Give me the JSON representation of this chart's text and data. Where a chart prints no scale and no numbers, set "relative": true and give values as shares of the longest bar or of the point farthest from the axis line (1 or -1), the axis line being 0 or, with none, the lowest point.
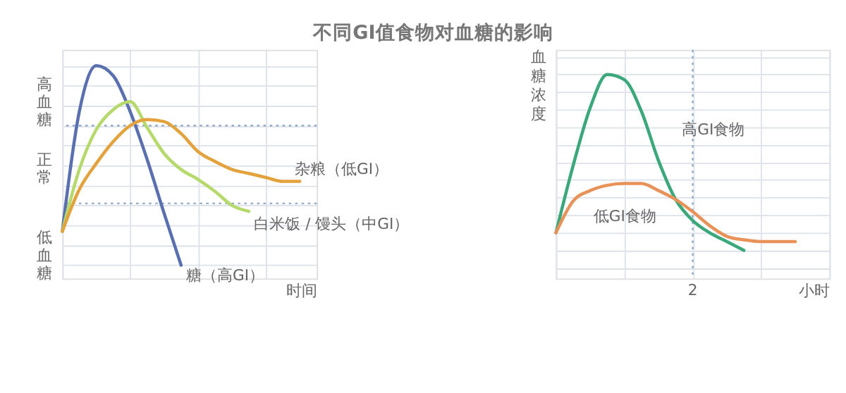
{
  "chart_data": [
    {
      "type": "line",
      "title": "不同GI值食物对血糖的影响",
      "xlabel": "时间",
      "relative": true,
      "grid": true,
      "legend": false,
      "tick_labels": false,
      "categories": [
        null,
        null,
        null,
        null,
        null,
        null,
        null,
        null,
        null,
        null,
        null,
        null,
        null,
        null,
        null,
        null
      ],
      "series": [
        {
          "name": "糖（高GI）",
          "color": "#5a6fb0",
          "values": [
            0.17,
            0.77,
            1.0,
            0.95,
            0.77,
            0.53,
            0.26,
            0,
            null,
            null,
            null,
            null,
            null,
            null,
            null,
            null
          ]
        },
        {
          "name": "白米饭 / 馒头（中GI）",
          "color": "#b5d96a",
          "values": [
            0.17,
            0.48,
            0.68,
            0.78,
            0.82,
            0.69,
            0.56,
            0.48,
            0.43,
            0.37,
            0.3,
            0.27,
            null,
            null,
            null,
            null
          ]
        },
        {
          "name": "杂粮（低GI）",
          "color": "#e3a23c",
          "values": [
            0.17,
            0.38,
            0.51,
            0.62,
            0.7,
            0.73,
            0.72,
            0.66,
            0.57,
            0.52,
            0.48,
            0.46,
            0.44,
            0.42,
            0.42,
            null
          ]
        }
      ],
      "ref_lines": [
        {
          "axis": "y",
          "value": 0.7,
          "color": "#8aa3c0",
          "line_style": "dotted"
        },
        {
          "axis": "y",
          "value": 0.31,
          "color": "#8aa3c0",
          "line_style": "dotted"
        }
      ],
      "annotations": [
        "高血糖",
        "正常",
        "低血糖"
      ]
    },
    {
      "type": "line",
      "ylabel": "血糖浓度",
      "xlabel": "小时",
      "relative": true,
      "grid": true,
      "legend": false,
      "tick_labels": false,
      "categories": [
        null,
        null,
        null,
        null,
        null,
        null,
        null,
        null,
        null,
        null,
        null,
        null,
        null,
        null,
        null,
        null,
        null
      ],
      "series": [
        {
          "name": "高GI食物",
          "color": "#3aa87a",
          "values": [
            0.1,
            0.48,
            0.81,
            1.0,
            0.97,
            0.79,
            0.51,
            0.29,
            0.17,
            0.1,
            0.05,
            0,
            null,
            null,
            null,
            null,
            null
          ]
        },
        {
          "name": "低GI食物",
          "color": "#e8925a",
          "values": [
            0.1,
            0.28,
            0.34,
            0.37,
            0.38,
            0.38,
            0.34,
            0.29,
            0.22,
            0.14,
            0.08,
            0.06,
            0.05,
            0.05,
            0.05,
            null,
            null
          ]
        }
      ],
      "ref_lines": [
        {
          "axis": "x",
          "label": "2",
          "color": "#8aa3c0",
          "line_style": "dotted"
        }
      ]
    }
  ]
}
